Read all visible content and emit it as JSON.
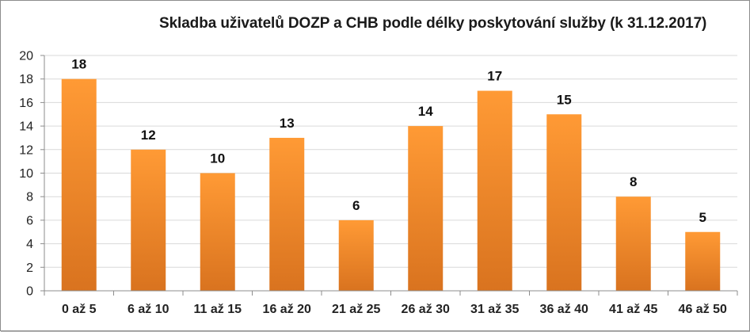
{
  "chart_data": {
    "type": "bar",
    "title": "Skladba uživatelů  DOZP a CHB podle délky  poskytování služby (k 31.12.2017)",
    "xlabel": "",
    "ylabel": "",
    "categories": [
      "0 až 5",
      "6 až 10",
      "11 až 15",
      "16 až 20",
      "21 až 25",
      "26 až 30",
      "31 až 35",
      "36 až 40",
      "41 až 45",
      "46 až 50"
    ],
    "values": [
      18,
      12,
      10,
      13,
      6,
      14,
      17,
      15,
      8,
      5
    ],
    "ylim": [
      0,
      20
    ],
    "yticks": [
      0,
      2,
      4,
      6,
      8,
      10,
      12,
      14,
      16,
      18,
      20
    ],
    "grid": true,
    "legend": "none",
    "data_labels": true,
    "colors": {
      "bar_top": "#FF9A35",
      "bar_bottom": "#D9731F",
      "grid": "#D9D9D9",
      "axis": "#8C8C8C"
    }
  }
}
